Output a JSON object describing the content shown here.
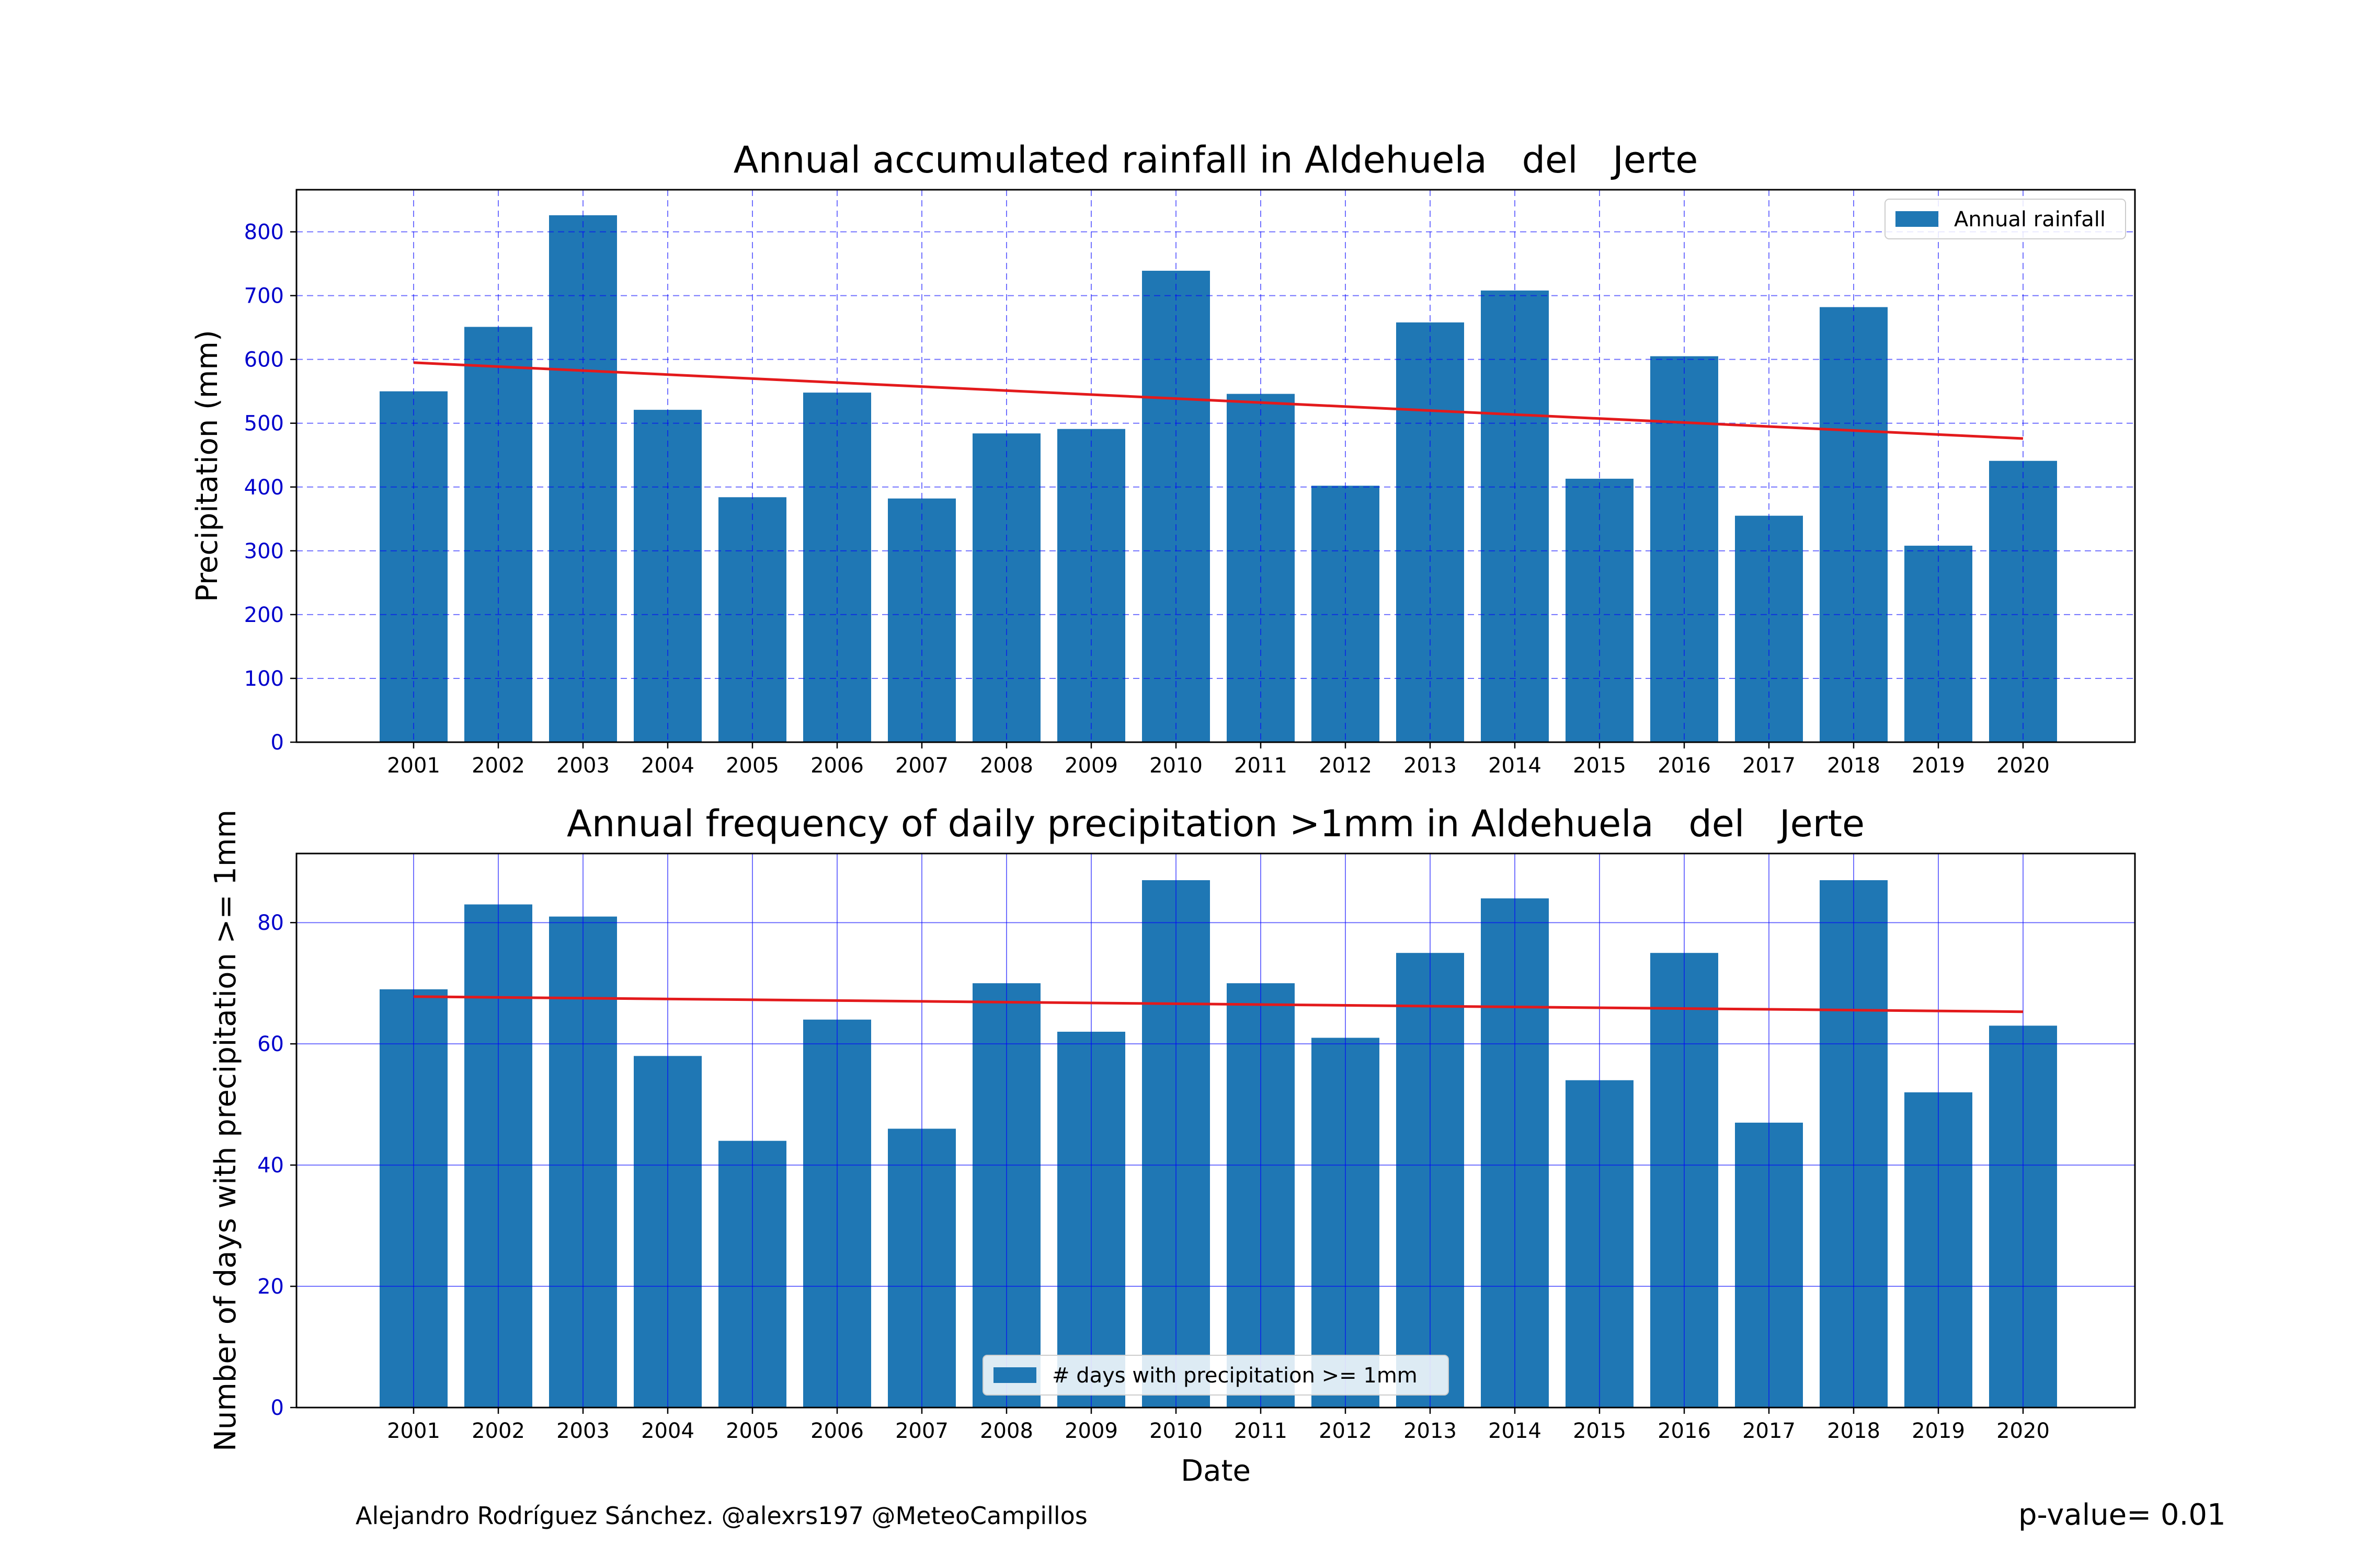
{
  "chart_data": [
    {
      "type": "bar",
      "title": "Annual accumulated rainfall in Aldehuela   del   Jerte",
      "xlabel": "",
      "ylabel": "Precipitation (mm)",
      "categories": [
        "2001",
        "2002",
        "2003",
        "2004",
        "2005",
        "2006",
        "2007",
        "2008",
        "2009",
        "2010",
        "2011",
        "2012",
        "2013",
        "2014",
        "2015",
        "2016",
        "2017",
        "2018",
        "2019",
        "2020"
      ],
      "series": [
        {
          "name": "Annual rainfall",
          "values": [
            550,
            651,
            826,
            521,
            384,
            548,
            382,
            484,
            491,
            739,
            546,
            402,
            658,
            708,
            413,
            605,
            355,
            682,
            308,
            441
          ]
        }
      ],
      "trend": {
        "start": 595,
        "end": 476,
        "color": "#e31a1c"
      },
      "ylim": [
        0,
        866
      ],
      "yticks": [
        0,
        100,
        200,
        300,
        400,
        500,
        600,
        700,
        800
      ],
      "grid": "both, dashed",
      "legend": "top-right",
      "colors": {
        "bar": "#1f77b4",
        "grid": "#0000ff",
        "tick_label": "#0000cc"
      }
    },
    {
      "type": "bar",
      "title": "Annual frequency of daily precipitation >1mm in Aldehuela   del   Jerte",
      "xlabel": "Date",
      "ylabel": "Number of days with precipitation >= 1mm",
      "categories": [
        "2001",
        "2002",
        "2003",
        "2004",
        "2005",
        "2006",
        "2007",
        "2008",
        "2009",
        "2010",
        "2011",
        "2012",
        "2013",
        "2014",
        "2015",
        "2016",
        "2017",
        "2018",
        "2019",
        "2020"
      ],
      "series": [
        {
          "name": "# days with precipitation >= 1mm",
          "values": [
            69,
            83,
            81,
            58,
            44,
            64,
            46,
            70,
            62,
            87,
            70,
            61,
            75,
            84,
            54,
            75,
            47,
            87,
            52,
            63
          ]
        }
      ],
      "trend": {
        "start": 67.8,
        "end": 65.3,
        "color": "#e31a1c"
      },
      "ylim": [
        0,
        91.4
      ],
      "yticks": [
        0,
        20,
        40,
        60,
        80
      ],
      "grid": "both, solid",
      "legend": "bottom-center",
      "colors": {
        "bar": "#1f77b4",
        "grid": "#0000ff",
        "tick_label": "#0000cc"
      }
    }
  ],
  "footer": {
    "credit": "Alejandro Rodríguez Sánchez. @alexrs197 @MeteoCampillos",
    "pvalue": "p-value= 0.01"
  }
}
